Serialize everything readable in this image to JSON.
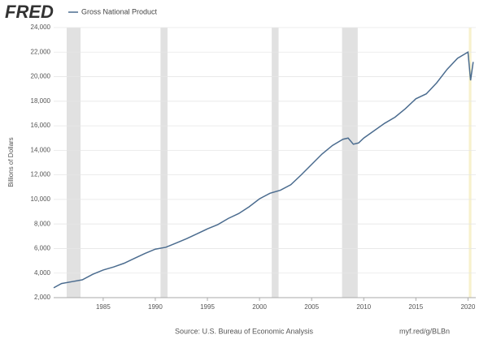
{
  "chart_data": {
    "type": "line",
    "logo": "FRED",
    "y_label": "Billions of Dollars",
    "source": "Source: U.S. Bureau of Economic Analysis",
    "link": "myf.red/g/BLBn",
    "x": [
      1980.25,
      1981,
      1982,
      1983,
      1984,
      1985,
      1986,
      1987,
      1988,
      1989,
      1990,
      1991,
      1992,
      1993,
      1994,
      1995,
      1996,
      1997,
      1998,
      1999,
      2000,
      2001,
      2002,
      2003,
      2004,
      2005,
      2006,
      2007,
      2008,
      2008.5,
      2009,
      2009.5,
      2010,
      2011,
      2012,
      2013,
      2014,
      2015,
      2016,
      2017,
      2018,
      2019,
      2020,
      2020.25,
      2020.5
    ],
    "series": [
      {
        "name": "Gross National Product",
        "color": "#4b6c8f",
        "values": [
          2800,
          3150,
          3300,
          3450,
          3900,
          4250,
          4500,
          4800,
          5200,
          5600,
          5950,
          6100,
          6450,
          6800,
          7200,
          7600,
          7950,
          8450,
          8850,
          9400,
          10050,
          10500,
          10750,
          11200,
          12000,
          12850,
          13700,
          14400,
          14900,
          15000,
          14500,
          14600,
          15000,
          15600,
          16200,
          16700,
          17400,
          18200,
          18600,
          19500,
          20600,
          21500,
          22000,
          19700,
          21200
        ]
      }
    ],
    "recessions": [
      {
        "start": 1981.5,
        "end": 1982.83,
        "color": "#e1e1e1"
      },
      {
        "start": 1990.5,
        "end": 1991.17,
        "color": "#e1e1e1"
      },
      {
        "start": 2001.17,
        "end": 2001.83,
        "color": "#e1e1e1"
      },
      {
        "start": 2007.92,
        "end": 2009.42,
        "color": "#e1e1e1"
      },
      {
        "start": 2020.08,
        "end": 2020.33,
        "color": "#f7f1cc"
      }
    ],
    "xlim": [
      1980.25,
      2020.75
    ],
    "xticks": [
      1985,
      1990,
      1995,
      2000,
      2005,
      2010,
      2015,
      2020
    ],
    "ylim": [
      2000,
      24000
    ],
    "yticks": [
      {
        "value": 2000,
        "label": "2,000"
      },
      {
        "value": 4000,
        "label": "4,000"
      },
      {
        "value": 6000,
        "label": "6,000"
      },
      {
        "value": 8000,
        "label": "8,000"
      },
      {
        "value": 10000,
        "label": "10,000"
      },
      {
        "value": 12000,
        "label": "12,000"
      },
      {
        "value": 14000,
        "label": "14,000"
      },
      {
        "value": 16000,
        "label": "16,000"
      },
      {
        "value": 18000,
        "label": "18,000"
      },
      {
        "value": 20000,
        "label": "20,000"
      },
      {
        "value": 22000,
        "label": "22,000"
      },
      {
        "value": 24000,
        "label": "24,000"
      }
    ],
    "grid": true
  }
}
